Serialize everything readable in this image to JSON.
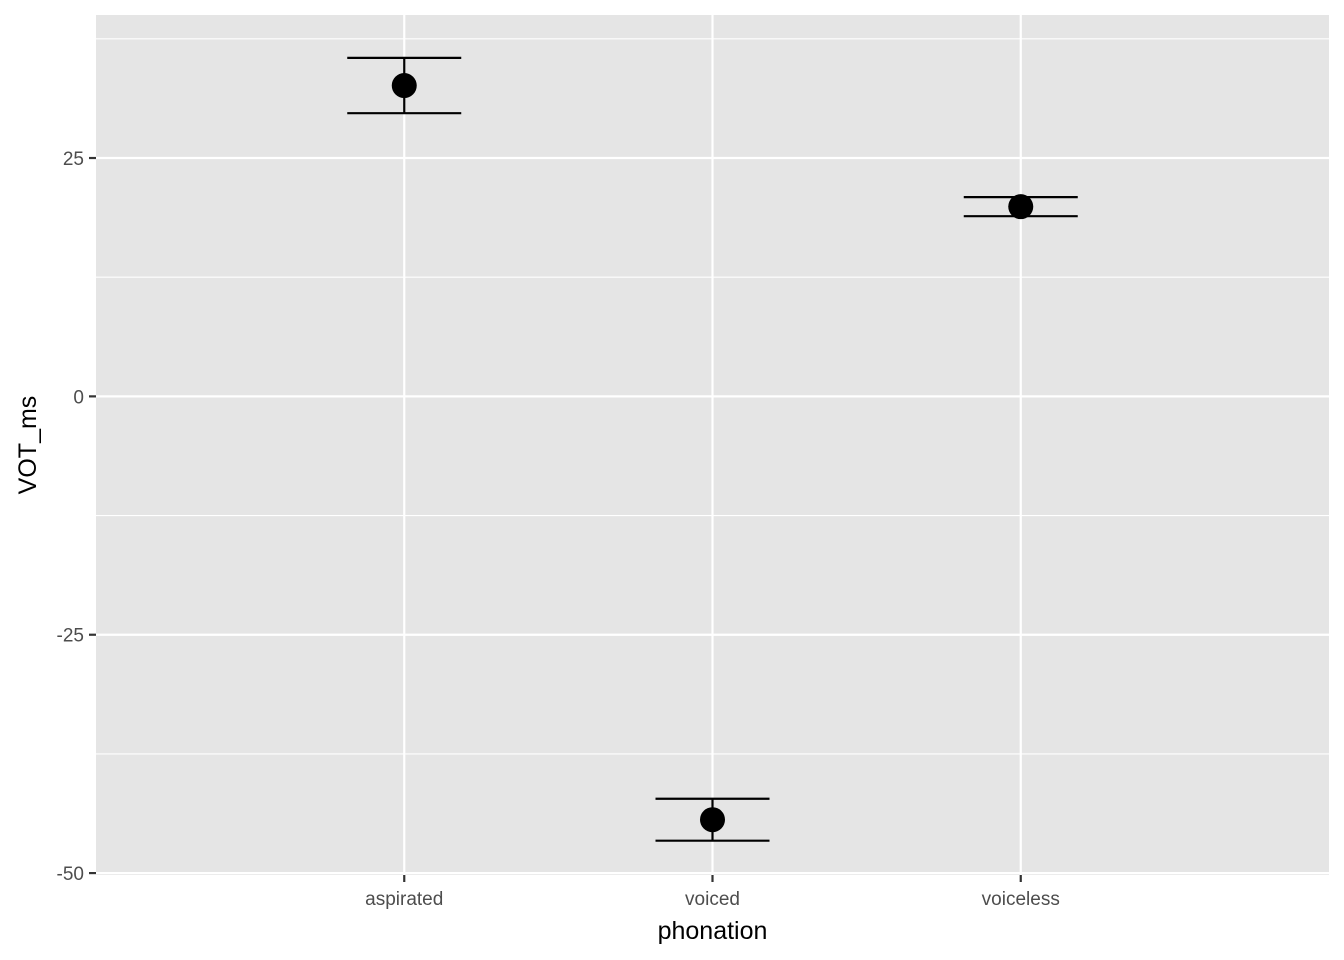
{
  "chart_data": {
    "type": "scatter",
    "subtype": "point-with-errorbars",
    "title": "",
    "xlabel": "phonation",
    "ylabel": "VOT_ms",
    "categories": [
      "aspirated",
      "voiced",
      "voiceless"
    ],
    "values": [
      32.6,
      -44.4,
      19.9
    ],
    "error_low": [
      29.7,
      -46.6,
      18.9
    ],
    "error_high": [
      35.5,
      -42.2,
      20.9
    ],
    "ylim": [
      -50.2,
      40
    ],
    "yticks": [
      -50,
      -25,
      0,
      25
    ],
    "ytick_labels": [
      "-50",
      "-25",
      "0",
      "25"
    ],
    "grid": true,
    "legend": "none",
    "colors": {
      "panel_background": "#e5e5e5",
      "grid": "#ffffff",
      "points": "#000000",
      "tick_text": "#4d4d4d",
      "tick_marks": "#333333"
    }
  }
}
